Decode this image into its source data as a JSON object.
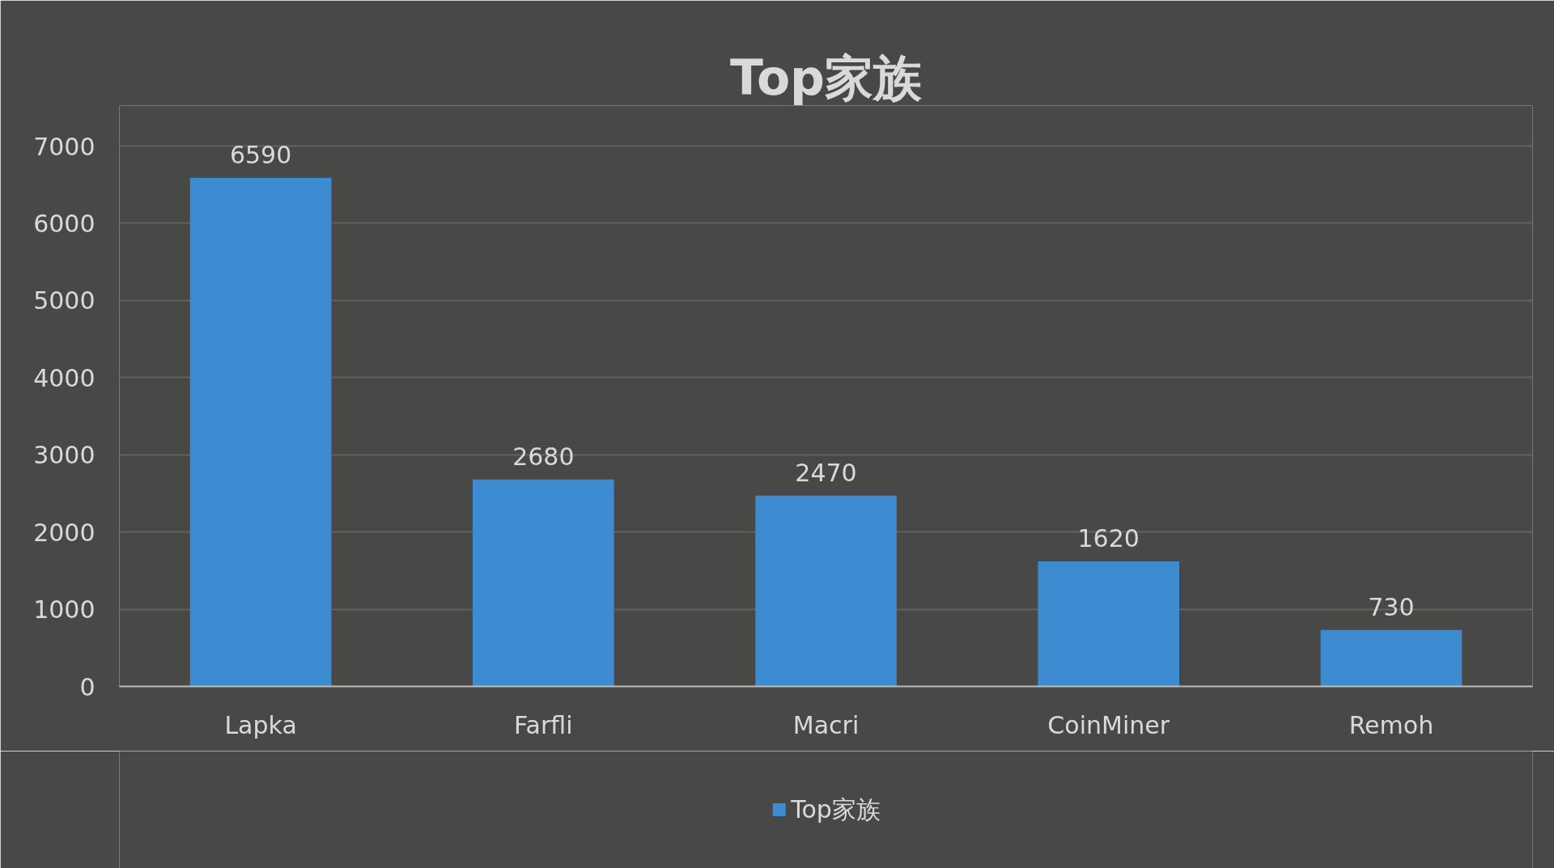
{
  "chart_data": {
    "type": "bar",
    "title": "Top家族",
    "categories": [
      "Lapka",
      "Farfli",
      "Macri",
      "CoinMiner",
      "Remoh"
    ],
    "series": [
      {
        "name": "Top家族",
        "color": "#3d8bd0",
        "values": [
          6590,
          2680,
          2470,
          1620,
          730
        ]
      }
    ],
    "ylim": [
      0,
      7000
    ],
    "yticks": [
      0,
      1000,
      2000,
      3000,
      4000,
      5000,
      6000,
      7000
    ],
    "grid": "y",
    "data_labels": true,
    "legend": "bottom"
  }
}
